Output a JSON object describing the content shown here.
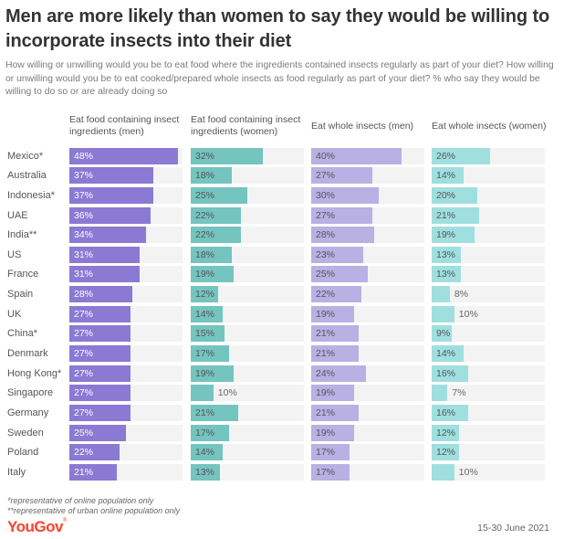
{
  "title": "Men are more likely than women to say they would be willing to incorporate insects into their diet",
  "subtitle": "How willing or unwilling would you be to eat food where the ingredients contained insects regularly as part of your diet? How willing or unwilling would you be to eat cooked/prepared whole insects as food regularly as part of your diet? % who say they would be willing to do so or are already doing so",
  "footnotes": [
    "*representative of online population only",
    "**representative of urban online population only"
  ],
  "brand": {
    "name": "YouGov",
    "color": "#ff412c"
  },
  "date": "15-30 June 2021",
  "chart_data": {
    "type": "bar",
    "orientation": "horizontal",
    "unit": "%",
    "xlim": [
      0,
      50
    ],
    "grid": false,
    "categories": [
      "Mexico*",
      "Australia",
      "Indonesia*",
      "UAE",
      "India**",
      "US",
      "France",
      "Spain",
      "UK",
      "China*",
      "Denmark",
      "Hong Kong*",
      "Singapore",
      "Germany",
      "Sweden",
      "Poland",
      "Italy"
    ],
    "series": [
      {
        "name": "Eat food containing insect ingredients (men)",
        "color": "#8a7ad3",
        "label_color": "#ffffff",
        "values": [
          48,
          37,
          37,
          36,
          34,
          31,
          31,
          28,
          27,
          27,
          27,
          27,
          27,
          27,
          25,
          22,
          21
        ]
      },
      {
        "name": "Eat food containing insect ingredients (women)",
        "color": "#74c4c0",
        "label_color": "#555555",
        "values": [
          32,
          18,
          25,
          22,
          22,
          18,
          19,
          12,
          14,
          15,
          17,
          19,
          10,
          21,
          17,
          14,
          13
        ]
      },
      {
        "name": "Eat whole insects (men)",
        "color": "#b9b0e4",
        "label_color": "#555555",
        "values": [
          40,
          27,
          30,
          27,
          28,
          23,
          25,
          22,
          19,
          21,
          21,
          24,
          19,
          21,
          19,
          17,
          17
        ]
      },
      {
        "name": "Eat whole insects (women)",
        "color": "#9fdfdf",
        "label_color": "#555555",
        "values": [
          26,
          14,
          20,
          21,
          19,
          13,
          13,
          8,
          10,
          9,
          14,
          16,
          7,
          16,
          12,
          12,
          10
        ]
      }
    ],
    "track_color": "#f3f3f3"
  }
}
